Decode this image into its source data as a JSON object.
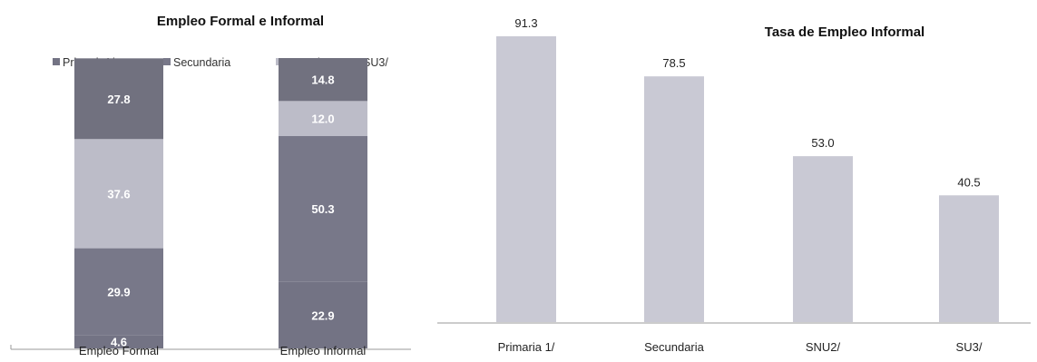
{
  "chart_data": [
    {
      "type": "bar",
      "stacked": true,
      "title": "Empleo Formal e Informal",
      "categories": [
        "Empleo Formal",
        "Empleo Informal"
      ],
      "series": [
        {
          "name": "Primaria1/",
          "values": [
            4.6,
            22.9
          ],
          "labels": [
            "4.6",
            "22.9"
          ],
          "color": "#737384"
        },
        {
          "name": "Secundaria",
          "values": [
            29.9,
            50.3
          ],
          "labels": [
            "29.9",
            "50.3"
          ],
          "color": "#787889"
        },
        {
          "name": "SNU2/",
          "values": [
            37.6,
            12.0
          ],
          "labels": [
            "37.6",
            "12.0"
          ],
          "color": "#bcbcc8"
        },
        {
          "name": "SU3/",
          "values": [
            27.8,
            14.8
          ],
          "labels": [
            "27.8",
            "14.8"
          ],
          "color": "#71717f"
        }
      ],
      "ylim": [
        0,
        100
      ],
      "legend_position": "top",
      "grid": false
    },
    {
      "type": "bar",
      "title": "Tasa de Empleo Informal",
      "categories": [
        "Primaria 1/",
        "Secundaria",
        "SNU2/",
        "SU3/"
      ],
      "values": [
        91.3,
        78.5,
        53.0,
        40.5
      ],
      "labels": [
        "91.3",
        "78.5",
        "53.0",
        "40.5"
      ],
      "color": "#c9c9d4",
      "ylim": [
        0,
        100
      ],
      "grid": false
    }
  ]
}
